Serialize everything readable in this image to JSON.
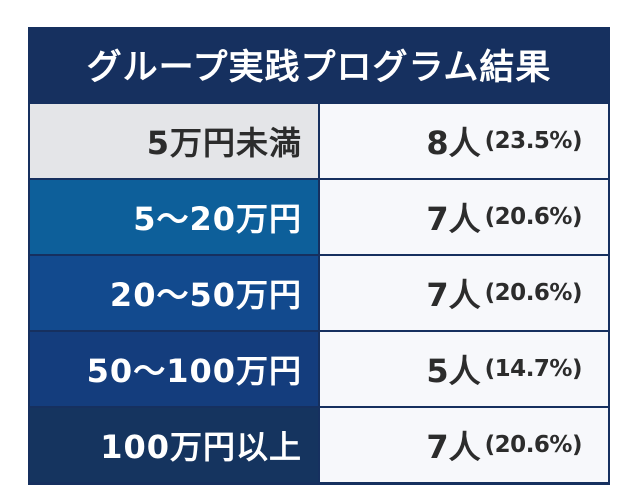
{
  "title": "グループ実践プログラム結果",
  "colors": {
    "frame": "#16305f",
    "value_bg": "#f7f8fb",
    "value_text": "#2c2c2c"
  },
  "rows": [
    {
      "label": "5万円未満",
      "count": "8人",
      "percent": "(23.5%)",
      "label_bg": "#e4e5e8",
      "label_color": "#2c2c2c"
    },
    {
      "label": "5～20万円",
      "count": "7人",
      "percent": "(20.6%)",
      "label_bg": "#0d5f9a",
      "label_color": "#ffffff"
    },
    {
      "label": "20～50万円",
      "count": "7人",
      "percent": "(20.6%)",
      "label_bg": "#124a8e",
      "label_color": "#ffffff"
    },
    {
      "label": "50～100万円",
      "count": "5人",
      "percent": "(14.7%)",
      "label_bg": "#143d7d",
      "label_color": "#ffffff"
    },
    {
      "label": "100万円以上",
      "count": "7人",
      "percent": "(20.6%)",
      "label_bg": "#15345f",
      "label_color": "#ffffff"
    }
  ]
}
